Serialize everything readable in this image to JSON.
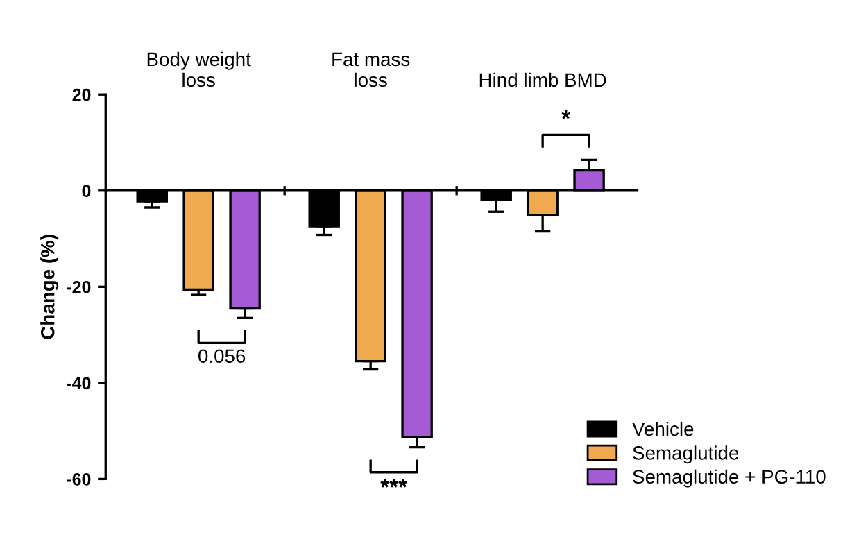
{
  "chart_data": {
    "type": "bar",
    "ylabel": "Change (%)",
    "categories": [
      "Body weight\nloss",
      "Fat mass\nloss",
      "Hind limb BMD"
    ],
    "series": [
      {
        "name": "Vehicle",
        "color": "#000000",
        "values": [
          -2.2,
          -7.4,
          -1.8
        ],
        "errors": [
          [
            -3.5,
            -2.2
          ],
          [
            -9.2,
            -7.4
          ],
          [
            -4.4,
            -1.8
          ]
        ]
      },
      {
        "name": "Semaglutide",
        "color": "#f0a94e",
        "values": [
          -20.6,
          -35.5,
          -5.1
        ],
        "errors": [
          [
            -21.7,
            -20.6
          ],
          [
            -37.2,
            -35.5
          ],
          [
            -8.5,
            -5.1
          ]
        ]
      },
      {
        "name": "Semaglutide + PG-110",
        "color": "#a55bd3",
        "values": [
          -24.5,
          -51.3,
          4.2
        ],
        "errors": [
          [
            -26.5,
            -24.5
          ],
          [
            -53.4,
            -51.3
          ],
          [
            4.2,
            6.4
          ]
        ]
      }
    ],
    "ylim": [
      -60,
      20
    ],
    "yticks": [
      -60,
      -40,
      -20,
      0,
      20
    ],
    "legend": "bottom right",
    "annotations": [
      "0.056",
      "***",
      "*"
    ]
  }
}
